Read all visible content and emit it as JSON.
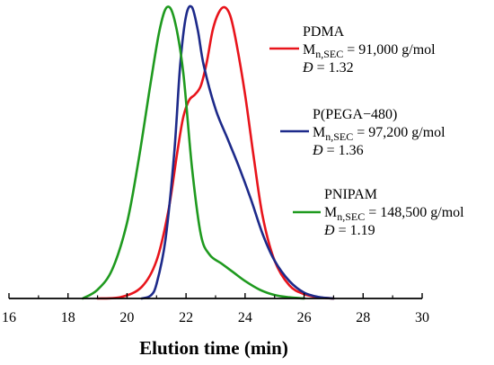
{
  "chart_data": {
    "type": "line",
    "xlabel": "Elution time (min)",
    "ylabel": "",
    "xlim": [
      16,
      30
    ],
    "ylim": [
      0,
      1
    ],
    "x_ticks": [
      "16",
      "18",
      "20",
      "22",
      "24",
      "26",
      "28",
      "30"
    ],
    "y_axis_visible": false,
    "grid": false,
    "legend_position": "right",
    "series": [
      {
        "name": "PDMA",
        "color": "#e8141b",
        "mn_label": "M",
        "mn_sub": "n,SEC",
        "mn_value": " = 91,000 g/mol",
        "dispersity_label": "Đ",
        "dispersity_value": " = 1.32",
        "x": [
          19.0,
          19.8,
          20.5,
          21.0,
          21.4,
          21.7,
          21.9,
          22.1,
          22.3,
          22.5,
          22.7,
          22.9,
          23.1,
          23.3,
          23.5,
          23.7,
          24.0,
          24.3,
          24.6,
          25.0,
          25.5,
          26.0,
          26.5,
          27.0
        ],
        "y": [
          0.0,
          0.005,
          0.04,
          0.13,
          0.3,
          0.5,
          0.62,
          0.68,
          0.7,
          0.73,
          0.81,
          0.92,
          0.98,
          1.0,
          0.97,
          0.88,
          0.7,
          0.48,
          0.28,
          0.13,
          0.045,
          0.015,
          0.004,
          0.0
        ]
      },
      {
        "name": "P(PEGA−480)",
        "color": "#1d2a8a",
        "mn_label": "M",
        "mn_sub": "n,SEC",
        "mn_value": " = 97,200 g/mol",
        "dispersity_label": "Đ",
        "dispersity_value": " = 1.36",
        "x": [
          20.5,
          20.8,
          21.0,
          21.3,
          21.6,
          21.8,
          22.0,
          22.2,
          22.4,
          22.6,
          23.0,
          23.4,
          23.8,
          24.2,
          24.6,
          25.0,
          25.5,
          26.0,
          26.5,
          27.0
        ],
        "y": [
          0.0,
          0.01,
          0.05,
          0.2,
          0.5,
          0.8,
          0.97,
          1.0,
          0.92,
          0.8,
          0.65,
          0.55,
          0.45,
          0.34,
          0.22,
          0.13,
          0.06,
          0.02,
          0.005,
          0.0
        ]
      },
      {
        "name": "PNIPAM",
        "color": "#1f9a1f",
        "mn_label": "M",
        "mn_sub": "n,SEC",
        "mn_value": " = 148,500 g/mol",
        "dispersity_label": "Đ",
        "dispersity_value": " = 1.19",
        "x": [
          18.5,
          19.0,
          19.5,
          20.0,
          20.4,
          20.8,
          21.1,
          21.35,
          21.6,
          21.9,
          22.2,
          22.5,
          22.8,
          23.2,
          23.6,
          24.0,
          24.5,
          25.0,
          25.5,
          26.0
        ],
        "y": [
          0.0,
          0.03,
          0.1,
          0.26,
          0.48,
          0.74,
          0.92,
          1.0,
          0.96,
          0.78,
          0.45,
          0.22,
          0.15,
          0.12,
          0.09,
          0.06,
          0.03,
          0.012,
          0.004,
          0.0
        ]
      }
    ]
  }
}
